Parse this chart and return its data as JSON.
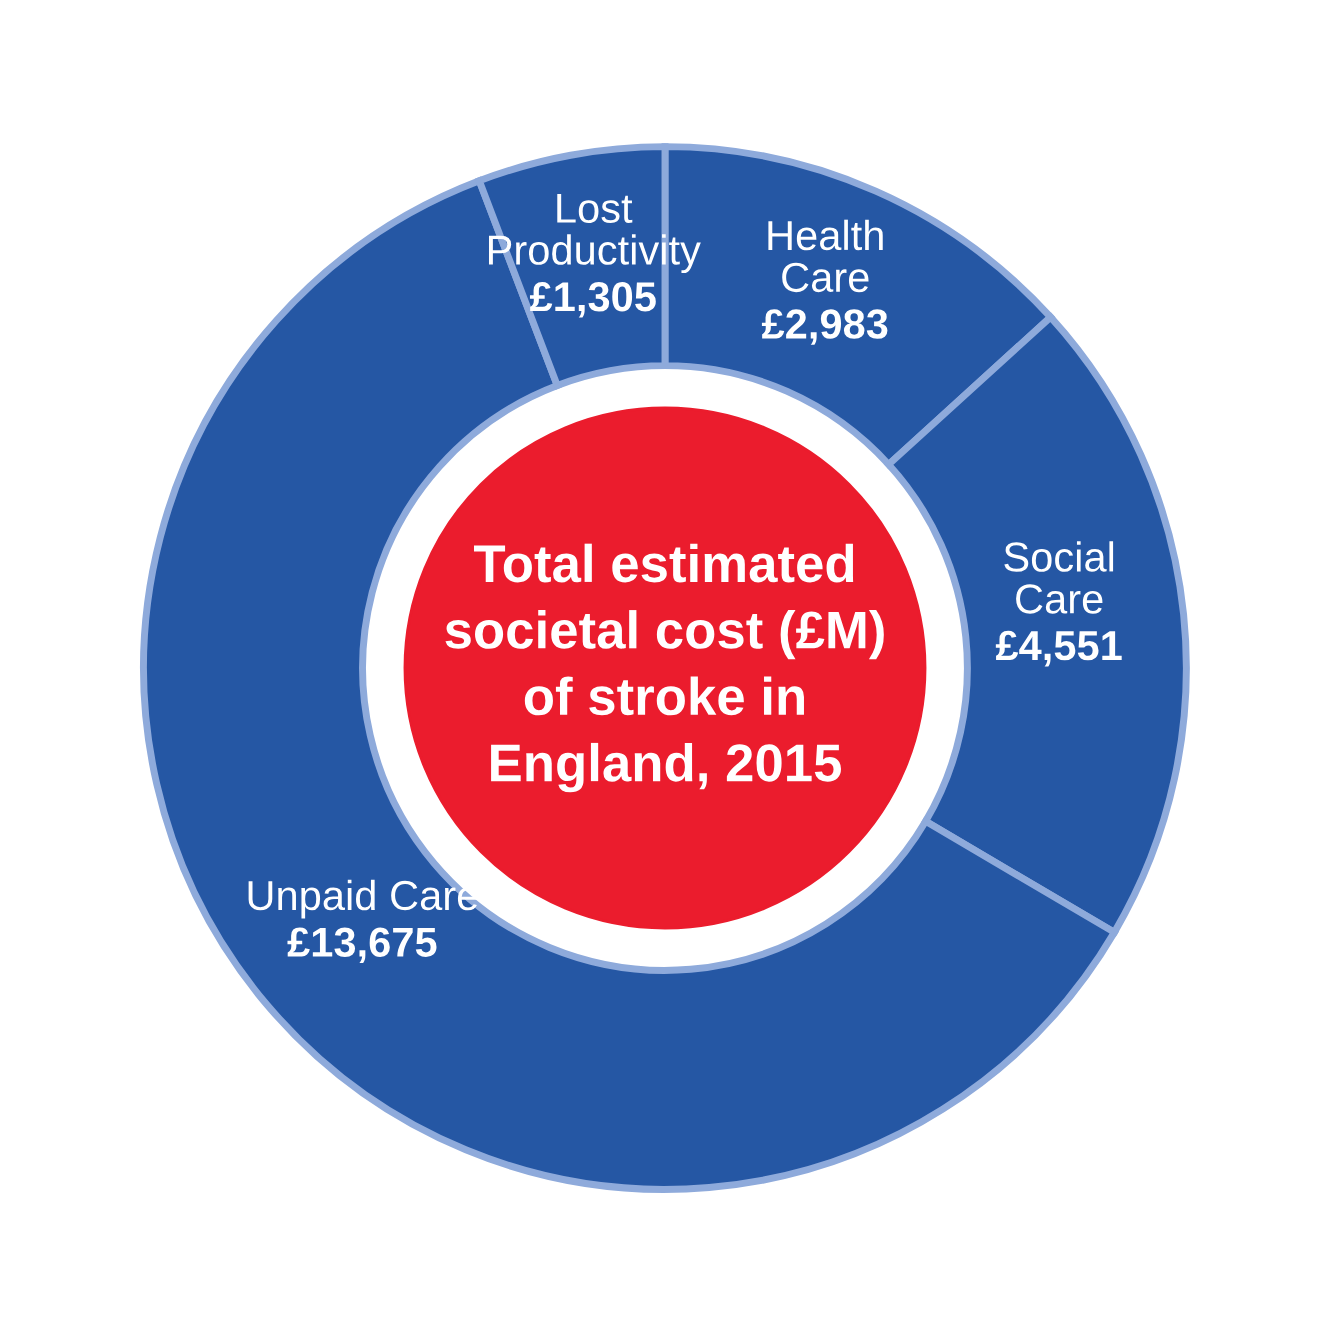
{
  "chart_data": {
    "type": "donut",
    "title": "Total estimated\nsocietal cost (£M)\nof stroke in\nEngland, 2015",
    "categories": [
      "Health\nCare",
      "Social\nCare",
      "Unpaid Care",
      "Lost\nProductivity"
    ],
    "values": [
      2983,
      4551,
      13675,
      1305
    ],
    "value_labels": [
      "£2,983",
      "£4,551",
      "£13,675",
      "£1,305"
    ],
    "colors": [
      "#2557a4",
      "#2557a4",
      "#2557a4",
      "#2557a4"
    ]
  }
}
